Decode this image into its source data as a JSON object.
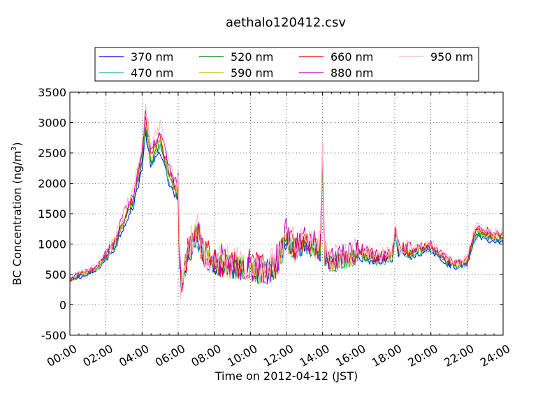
{
  "chart_data": {
    "type": "line",
    "title": "aethalo120412.csv",
    "xlabel": "Time on 2012-04-12 (JST)",
    "ylabel_main": "BC Concentration (ng/m",
    "ylabel_sup": "3",
    "ylabel_end": ")",
    "ylim": [
      -500,
      3500
    ],
    "xlim_hours": [
      0,
      24
    ],
    "grid": true,
    "legend_position": "top-center",
    "x_tick_labels": [
      "00:00",
      "02:00",
      "04:00",
      "06:00",
      "08:00",
      "10:00",
      "12:00",
      "14:00",
      "16:00",
      "18:00",
      "20:00",
      "22:00",
      "24:00"
    ],
    "y_tick_labels": [
      "-500",
      "0",
      "500",
      "1000",
      "1500",
      "2000",
      "2500",
      "3000",
      "3500"
    ],
    "series": [
      {
        "name": "370 nm",
        "color": "#0000ff"
      },
      {
        "name": "470 nm",
        "color": "#1abc9c"
      },
      {
        "name": "520 nm",
        "color": "#008000"
      },
      {
        "name": "590 nm",
        "color": "#bfbf00"
      },
      {
        "name": "660 nm",
        "color": "#ff0000"
      },
      {
        "name": "880 nm",
        "color": "#bf00bf"
      },
      {
        "name": "950 nm",
        "color": "#ffb6c1"
      }
    ],
    "base_profile": {
      "hours": [
        0,
        0.5,
        1,
        1.5,
        2,
        2.5,
        3,
        3.5,
        4,
        4.2,
        4.5,
        5,
        5.5,
        6,
        6.1,
        6.5,
        7,
        7.5,
        8,
        9,
        10,
        11,
        11.5,
        12,
        12.5,
        13,
        13.5,
        13.9,
        14,
        14.1,
        14.5,
        15,
        15.5,
        16,
        17,
        17.9,
        18,
        18.2,
        19,
        20,
        20.5,
        21,
        21.5,
        22,
        22.5,
        23,
        23.5,
        24
      ],
      "values": [
        400,
        480,
        520,
        600,
        800,
        1000,
        1400,
        1700,
        2400,
        3000,
        2400,
        2700,
        2100,
        1800,
        300,
        800,
        1200,
        800,
        700,
        650,
        600,
        550,
        700,
        1100,
        900,
        1000,
        950,
        900,
        2600,
        800,
        700,
        750,
        800,
        850,
        750,
        800,
        1300,
        900,
        850,
        950,
        800,
        700,
        650,
        700,
        1200,
        1150,
        1100,
        1100
      ]
    }
  }
}
